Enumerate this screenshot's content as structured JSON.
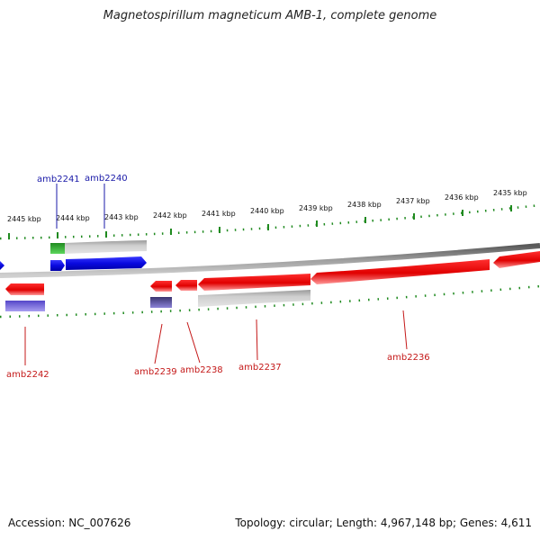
{
  "title": "Magnetospirillum magneticum AMB-1, complete genome",
  "footer": {
    "accession": "Accession: NC_007626",
    "summary": "Topology: circular; Length: 4,967,148 bp; Genes: 4,611"
  },
  "scale_labels": [
    "2445 kbp",
    "2444 kbp",
    "2443 kbp",
    "2442 kbp",
    "2441 kbp",
    "2440 kbp",
    "2439 kbp",
    "2438 kbp",
    "2437 kbp",
    "2436 kbp",
    "2435 kbp"
  ],
  "genes_top": [
    {
      "name": "amb2241",
      "color": "#1a1aa8"
    },
    {
      "name": "amb2240",
      "color": "#1a1aa8"
    }
  ],
  "genes_bottom": [
    {
      "name": "amb2242",
      "color": "#c41818"
    },
    {
      "name": "amb2239",
      "color": "#c41818"
    },
    {
      "name": "amb2238",
      "color": "#c41818"
    },
    {
      "name": "amb2237",
      "color": "#c41818"
    },
    {
      "name": "amb2236",
      "color": "#c41818"
    }
  ],
  "colors": {
    "scale_ticks": "#1f8a1f",
    "backbone": "#8c8c8c",
    "forward_gene": "#0b0bea",
    "reverse_gene": "#e01616",
    "cds_gray": "#b0b0b0",
    "cds_green": "#2c9c2c",
    "cds_purple": "#6a5acd"
  }
}
